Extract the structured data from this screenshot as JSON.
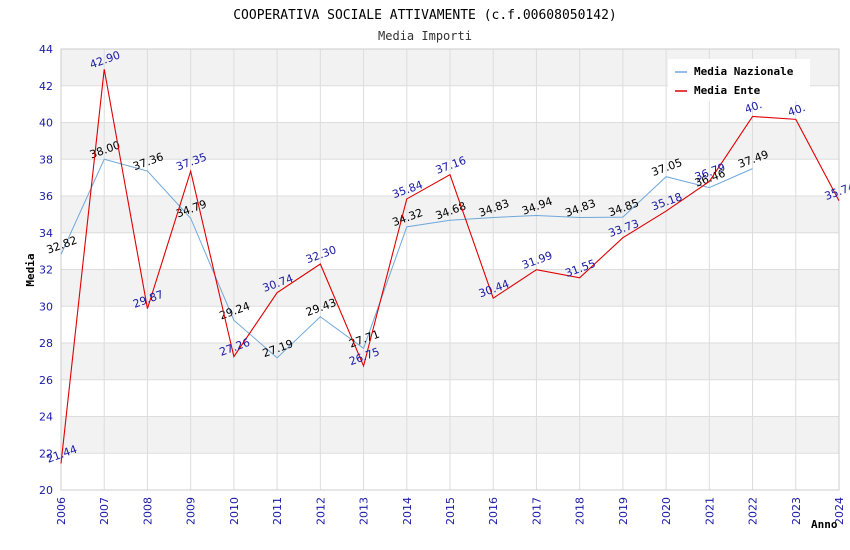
{
  "chart_data": {
    "type": "line",
    "title": "COOPERATIVA SOCIALE ATTIVAMENTE (c.f.00608050142)",
    "subtitle": "Media Importi",
    "xlabel": "Anno",
    "ylabel": "Media",
    "ylim": [
      20,
      44
    ],
    "ytick_step": 2,
    "grid": true,
    "legend_position": "top-right",
    "x": [
      2006,
      2007,
      2008,
      2009,
      2010,
      2011,
      2012,
      2013,
      2014,
      2015,
      2016,
      2017,
      2018,
      2019,
      2020,
      2021,
      2022,
      2023,
      2024
    ],
    "series": [
      {
        "name": "Media Nazionale",
        "color": "#6fa8dc",
        "values": [
          32.82,
          38.0,
          37.36,
          34.79,
          29.24,
          27.19,
          29.43,
          27.71,
          34.32,
          34.68,
          34.83,
          34.94,
          34.83,
          34.85,
          37.05,
          36.46,
          37.49,
          null,
          null
        ],
        "labels": [
          "32.82",
          "38.00",
          "37.36",
          "34.79",
          "29.24",
          "27.19",
          "29.43",
          "27.71",
          "34.32",
          "34.68",
          "34.83",
          "34.94",
          "34.83",
          "34.85",
          "37.05",
          "36.46",
          "37.49",
          "",
          ""
        ]
      },
      {
        "name": "Media Ente",
        "color": "#e00000",
        "values": [
          21.44,
          42.9,
          29.87,
          37.35,
          27.26,
          30.74,
          32.3,
          26.75,
          35.84,
          37.16,
          30.44,
          31.99,
          31.55,
          33.73,
          35.18,
          36.79,
          40.33,
          40.17,
          35.74
        ],
        "labels": [
          "21.44",
          "42.90",
          "29.87",
          "37.35",
          "27.26",
          "30.74",
          "32.30",
          "26.75",
          "35.84",
          "37.16",
          "30.44",
          "31.99",
          "31.55",
          "33.73",
          "35.18",
          "36.79",
          "40.",
          "40.",
          "35.74"
        ]
      }
    ]
  }
}
